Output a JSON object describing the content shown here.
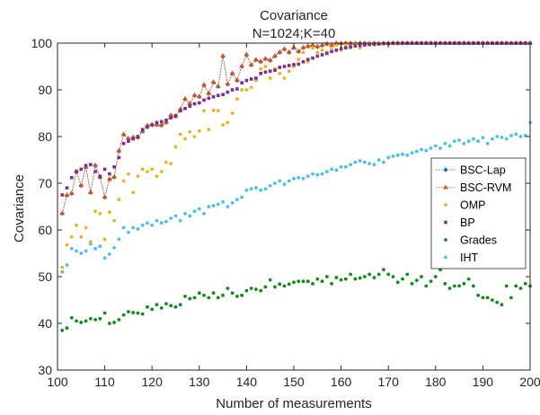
{
  "chart_data": {
    "type": "line",
    "title": "Covariance",
    "subtitle": "N=1024;K=40",
    "xlabel": "Number of measurements",
    "ylabel": "Covariance",
    "xlim": [
      100,
      200
    ],
    "ylim": [
      30,
      100
    ],
    "xticks": [
      100,
      110,
      120,
      130,
      140,
      150,
      160,
      170,
      180,
      190,
      200
    ],
    "yticks": [
      30,
      40,
      50,
      60,
      70,
      80,
      90,
      100
    ],
    "grid": false,
    "legend_position": "right",
    "x": [
      101,
      102,
      103,
      104,
      105,
      106,
      107,
      108,
      109,
      110,
      111,
      112,
      113,
      114,
      115,
      116,
      117,
      118,
      119,
      120,
      121,
      122,
      123,
      124,
      125,
      126,
      127,
      128,
      129,
      130,
      131,
      132,
      133,
      134,
      135,
      136,
      137,
      138,
      139,
      140,
      141,
      142,
      143,
      144,
      145,
      146,
      147,
      148,
      149,
      150,
      151,
      152,
      153,
      154,
      155,
      156,
      157,
      158,
      159,
      160,
      161,
      162,
      163,
      164,
      165,
      166,
      167,
      168,
      169,
      170,
      171,
      172,
      173,
      174,
      175,
      176,
      177,
      178,
      179,
      180,
      181,
      182,
      183,
      184,
      185,
      186,
      187,
      188,
      189,
      190,
      191,
      192,
      193,
      194,
      195,
      196,
      197,
      198,
      199,
      200
    ],
    "series": [
      {
        "name": "BSC-Lap",
        "color": "#0072BD",
        "marker": "diamond",
        "line": true,
        "values": [
          63.5,
          67.4,
          67.8,
          72.5,
          69.5,
          73.4,
          68.0,
          73.8,
          71.3,
          67.0,
          70.8,
          71.3,
          76.9,
          80.4,
          79.5,
          79.8,
          79.8,
          81.1,
          82.3,
          82.5,
          82.5,
          82.4,
          83.0,
          84.5,
          84.3,
          85.8,
          88.0,
          87.0,
          88.8,
          88.5,
          91.0,
          89.2,
          91.6,
          90.7,
          97.2,
          91.2,
          93.5,
          92.0,
          95.0,
          97.5,
          95.3,
          96.4,
          96.0,
          96.6,
          96.3,
          97.2,
          98.0,
          98.7,
          98.0,
          99.0,
          98.2,
          99.0,
          99.3,
          99.5,
          99.2,
          99.5,
          99.8,
          99.5,
          99.9,
          99.9,
          100,
          100,
          100,
          100,
          100,
          100,
          100,
          100,
          100,
          100,
          100,
          100,
          100,
          100,
          100,
          100,
          100,
          100,
          100,
          100,
          100,
          100,
          100,
          100,
          100,
          100,
          100,
          100,
          100,
          100,
          100,
          100,
          100,
          100,
          100,
          100,
          100,
          100,
          100,
          100
        ]
      },
      {
        "name": "BSC-RVM",
        "color": "#D95319",
        "marker": "triangle",
        "line": true,
        "values": [
          63.6,
          67.5,
          67.9,
          72.6,
          69.6,
          73.5,
          68.1,
          73.9,
          71.4,
          67.1,
          70.9,
          71.4,
          77.0,
          80.5,
          79.6,
          79.9,
          79.9,
          81.2,
          82.4,
          82.6,
          82.6,
          82.5,
          83.1,
          84.6,
          84.4,
          85.9,
          88.1,
          87.1,
          88.9,
          88.6,
          91.1,
          89.3,
          91.7,
          90.8,
          97.3,
          91.3,
          93.6,
          92.1,
          95.1,
          97.6,
          95.4,
          96.5,
          96.1,
          96.7,
          96.4,
          97.3,
          98.1,
          98.8,
          98.1,
          99.1,
          98.3,
          99.1,
          99.4,
          99.6,
          99.3,
          99.6,
          99.9,
          99.6,
          100,
          100,
          100,
          100,
          100,
          100,
          100,
          100,
          100,
          100,
          100,
          100,
          100,
          100,
          100,
          100,
          100,
          100,
          100,
          100,
          100,
          100,
          100,
          100,
          100,
          100,
          100,
          100,
          100,
          100,
          100,
          100,
          100,
          100,
          100,
          100,
          100,
          100,
          100,
          100,
          100,
          100
        ]
      },
      {
        "name": "OMP",
        "color": "#EDB120",
        "marker": "dot",
        "line": false,
        "values": [
          52.0,
          56.8,
          58.5,
          61.0,
          58.5,
          60.5,
          57.5,
          64.0,
          63.5,
          58.0,
          63.8,
          62.0,
          66.5,
          70.5,
          72.0,
          68.0,
          71.5,
          73.0,
          72.5,
          73.0,
          71.5,
          72.5,
          74.5,
          74.2,
          77.8,
          80.5,
          79.5,
          81.0,
          80.0,
          81.2,
          85.5,
          81.5,
          85.6,
          85.5,
          82.5,
          83.0,
          85.0,
          88.0,
          90.0,
          90.0,
          90.5,
          92.0,
          94.5,
          95.0,
          92.5,
          94.5,
          93.5,
          92.5,
          94.0,
          95.0,
          96.5,
          98.0,
          96.0,
          99.0,
          98.0,
          98.5,
          98.0,
          99.0,
          99.5,
          98.5,
          99.7,
          99.0,
          100,
          99.0,
          99.7,
          100,
          99.6,
          100,
          99.8,
          100,
          100,
          99.8,
          100,
          100,
          100,
          100,
          100,
          100,
          100,
          100,
          100,
          100,
          100,
          100,
          100,
          100,
          100,
          100,
          100,
          100,
          100,
          100,
          100,
          100,
          100,
          100,
          100,
          100,
          100,
          100
        ]
      },
      {
        "name": "BP",
        "color": "#7E2F8E",
        "marker": "square",
        "line": false,
        "values": [
          67.5,
          69.0,
          71.2,
          72.5,
          73.0,
          73.8,
          74.0,
          72.5,
          71.5,
          73.0,
          72.0,
          73.5,
          75.5,
          78.5,
          79.0,
          79.5,
          80.0,
          81.5,
          82.0,
          82.5,
          83.0,
          83.2,
          83.5,
          84.0,
          84.5,
          85.5,
          86.0,
          86.5,
          87.0,
          87.2,
          87.8,
          88.2,
          88.5,
          88.8,
          89.0,
          89.5,
          90.0,
          90.2,
          91.5,
          92.0,
          92.3,
          92.5,
          93.5,
          93.8,
          94.0,
          94.2,
          94.8,
          95.0,
          95.2,
          95.4,
          95.5,
          96.0,
          96.5,
          96.8,
          97.2,
          97.5,
          97.8,
          98.2,
          98.5,
          98.8,
          99.0,
          99.2,
          99.4,
          99.5,
          99.6,
          99.7,
          99.8,
          99.8,
          99.9,
          99.9,
          100,
          100,
          100,
          100,
          100,
          100,
          100,
          100,
          100,
          100,
          100,
          100,
          100,
          100,
          100,
          100,
          100,
          100,
          100,
          100,
          100,
          100,
          100,
          100,
          100,
          100,
          100,
          100,
          100,
          100
        ]
      },
      {
        "name": "Grades",
        "color": "#138A1A",
        "marker": "dot",
        "line": false,
        "values": [
          38.5,
          39.0,
          41.2,
          40.5,
          40.2,
          40.5,
          41.0,
          40.8,
          41.0,
          42.2,
          40.0,
          40.2,
          40.8,
          41.8,
          42.5,
          42.3,
          42.2,
          42.0,
          43.5,
          43.0,
          44.0,
          43.3,
          44.2,
          43.8,
          43.5,
          44.0,
          45.8,
          45.3,
          45.5,
          46.5,
          46.0,
          45.5,
          46.5,
          45.5,
          46.0,
          47.5,
          46.5,
          45.8,
          46.0,
          47.0,
          47.5,
          47.3,
          47.0,
          47.8,
          49.3,
          47.8,
          48.4,
          48.0,
          48.4,
          48.8,
          49.0,
          49.0,
          49.0,
          48.5,
          49.5,
          49.0,
          50.0,
          48.5,
          49.8,
          49.3,
          49.5,
          50.5,
          49.5,
          49.7,
          50.0,
          50.5,
          49.8,
          50.5,
          51.5,
          50.5,
          50.0,
          48.8,
          49.5,
          50.5,
          48.5,
          49.2,
          50.0,
          48.0,
          49.0,
          50.0,
          51.5,
          48.5,
          47.5,
          48.0,
          48.0,
          48.5,
          49.5,
          48.0,
          46.0,
          45.5,
          45.5,
          45.0,
          44.5,
          44.0,
          48.0,
          45.5,
          48.0,
          47.5,
          48.5,
          48.0
        ]
      },
      {
        "name": "IHT",
        "color": "#4DBEEE",
        "marker": "dot",
        "line": false,
        "values": [
          51.0,
          52.5,
          56.0,
          55.5,
          55.0,
          55.5,
          57.0,
          56.0,
          56.5,
          54.0,
          54.8,
          56.2,
          58.0,
          60.5,
          59.5,
          60.5,
          60.2,
          61.0,
          61.5,
          61.0,
          62.0,
          61.5,
          61.8,
          62.5,
          63.0,
          62.0,
          63.5,
          63.0,
          64.0,
          64.5,
          63.5,
          65.0,
          65.2,
          65.5,
          66.0,
          65.0,
          65.8,
          66.5,
          67.0,
          68.5,
          68.8,
          69.0,
          68.5,
          68.8,
          69.5,
          70.0,
          70.5,
          69.8,
          70.5,
          71.0,
          71.2,
          71.0,
          71.5,
          72.0,
          71.8,
          72.0,
          72.5,
          73.0,
          72.8,
          73.5,
          73.5,
          74.0,
          74.5,
          74.8,
          74.5,
          74.2,
          74.0,
          75.0,
          74.5,
          75.5,
          75.8,
          76.0,
          76.2,
          76.0,
          76.5,
          76.8,
          77.2,
          77.0,
          77.5,
          78.0,
          77.5,
          78.5,
          78.0,
          79.0,
          79.2,
          78.5,
          79.0,
          79.5,
          79.0,
          79.8,
          78.5,
          79.5,
          80.0,
          79.8,
          79.5,
          80.2,
          80.5,
          80.0,
          80.2,
          83.0
        ]
      }
    ]
  }
}
